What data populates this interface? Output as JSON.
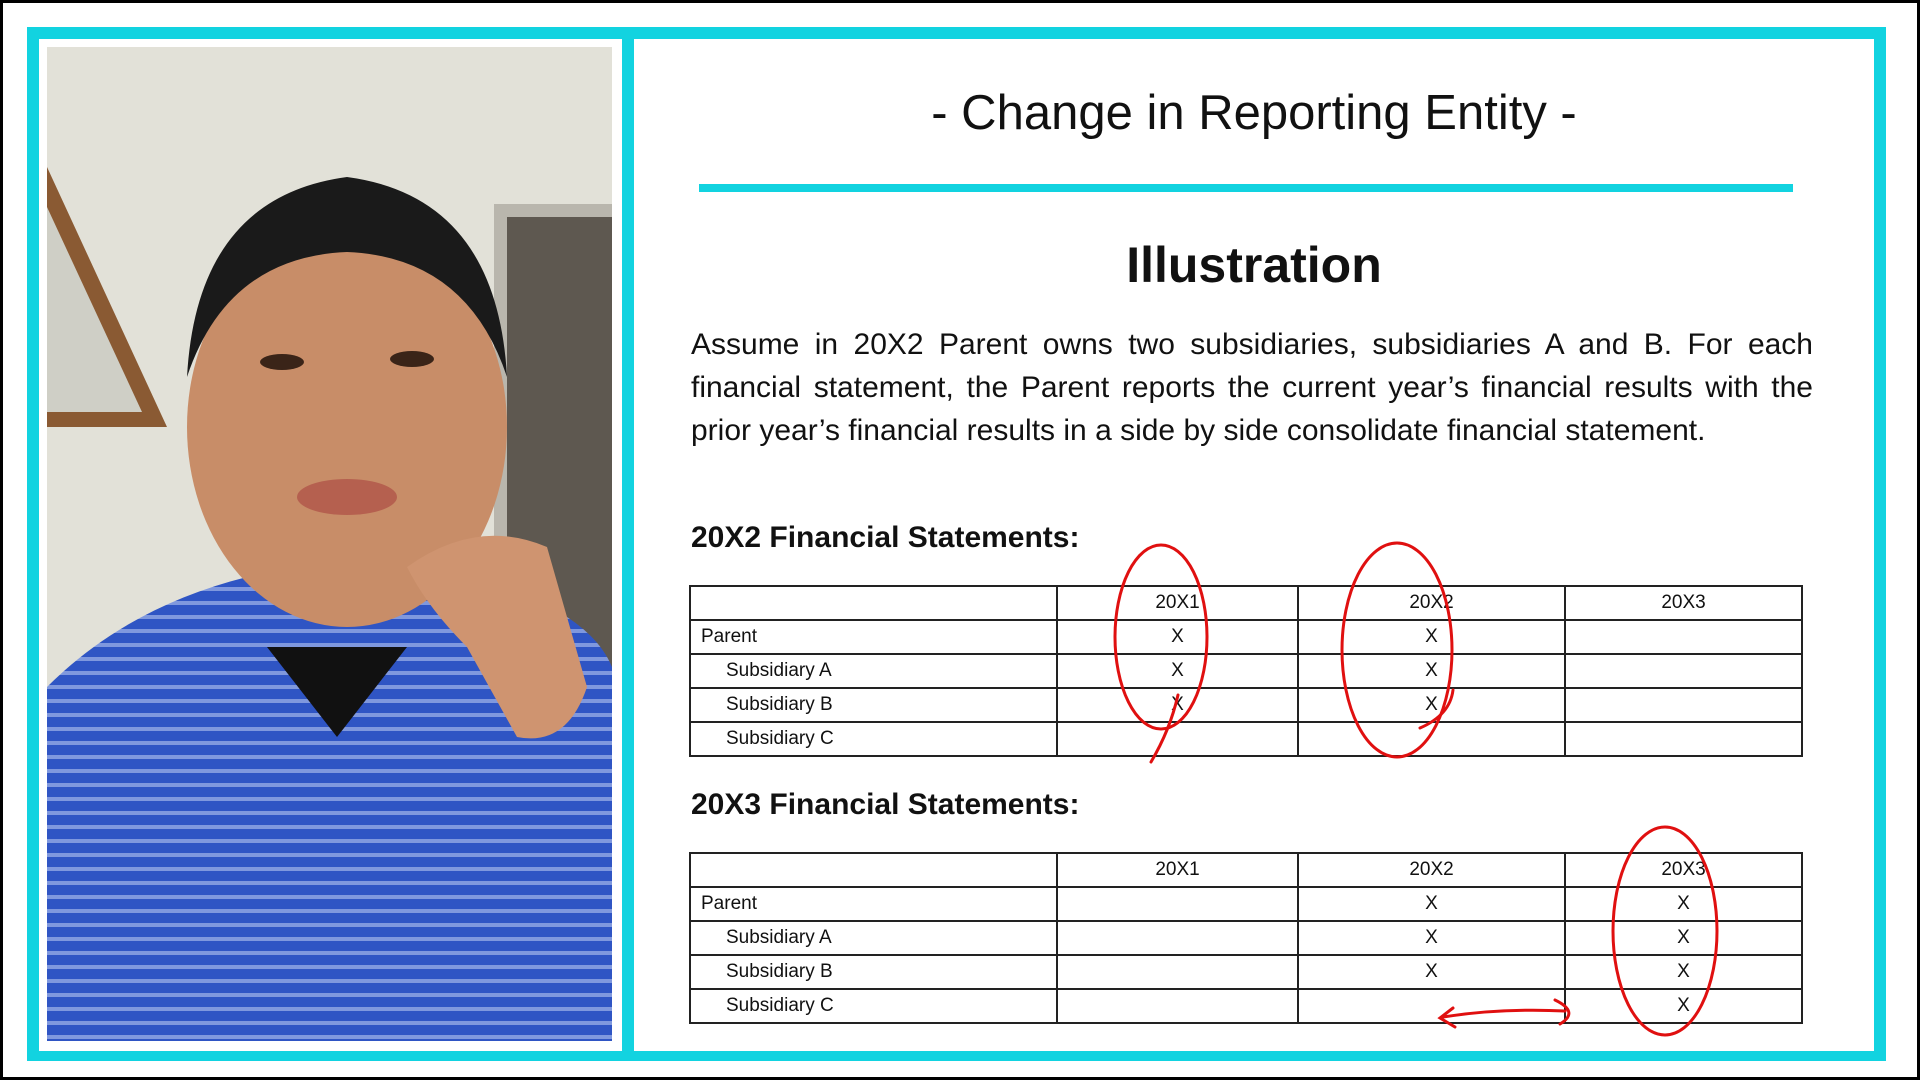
{
  "slide": {
    "title": "- Change in Reporting Entity -",
    "heading": "Illustration",
    "paragraph": "Assume in 20X2 Parent owns two subsidiaries, subsidiaries A and B. For each financial statement, the Parent reports the current year’s financial results with the prior year’s financial results in a side by side consolidate financial statement.",
    "accent_color": "#12d3e0",
    "annotation_color": "#e01010"
  },
  "tables": [
    {
      "heading": "20X2 Financial Statements:",
      "columns": [
        "",
        "20X1",
        "20X2",
        "20X3"
      ],
      "rows": [
        {
          "label": "Parent",
          "cells": [
            "X",
            "X",
            ""
          ]
        },
        {
          "label": "Subsidiary A",
          "cells": [
            "X",
            "X",
            ""
          ]
        },
        {
          "label": "Subsidiary B",
          "cells": [
            "X",
            "X",
            ""
          ]
        },
        {
          "label": "Subsidiary C",
          "cells": [
            "",
            "",
            ""
          ]
        }
      ]
    },
    {
      "heading": "20X3 Financial Statements:",
      "columns": [
        "",
        "20X1",
        "20X2",
        "20X3"
      ],
      "rows": [
        {
          "label": "Parent",
          "cells": [
            "",
            "X",
            "X"
          ]
        },
        {
          "label": "Subsidiary A",
          "cells": [
            "",
            "X",
            "X"
          ]
        },
        {
          "label": "Subsidiary B",
          "cells": [
            "",
            "X",
            "X"
          ]
        },
        {
          "label": "Subsidiary C",
          "cells": [
            "",
            "",
            "X"
          ]
        }
      ]
    }
  ]
}
